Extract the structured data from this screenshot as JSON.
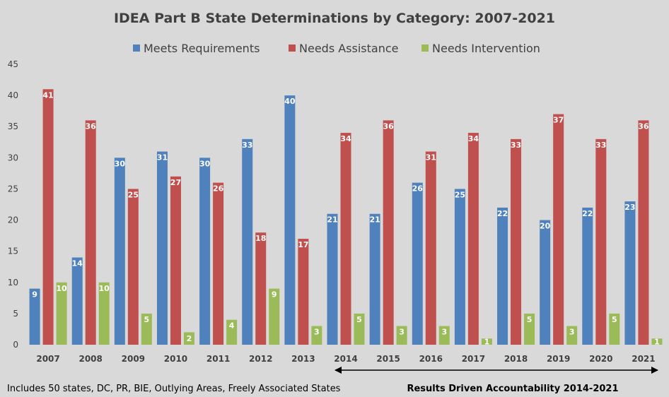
{
  "chart_data": {
    "type": "bar",
    "title": "IDEA Part B State Determinations by Category: 2007-2021",
    "categories": [
      "2007",
      "2008",
      "2009",
      "2010",
      "2011",
      "2012",
      "2013",
      "2014",
      "2015",
      "2016",
      "2017",
      "2018",
      "2019",
      "2020",
      "2021"
    ],
    "series": [
      {
        "name": "Meets Requirements",
        "color": "#4f81bd",
        "values": [
          9,
          14,
          30,
          31,
          30,
          33,
          40,
          21,
          21,
          26,
          25,
          22,
          20,
          22,
          23
        ]
      },
      {
        "name": "Needs Assistance",
        "color": "#c0504d",
        "values": [
          41,
          36,
          25,
          27,
          26,
          18,
          17,
          34,
          36,
          31,
          34,
          33,
          37,
          33,
          36
        ]
      },
      {
        "name": "Needs Intervention",
        "color": "#9bbb59",
        "values": [
          10,
          10,
          5,
          2,
          4,
          9,
          3,
          5,
          3,
          3,
          1,
          5,
          3,
          5,
          1
        ]
      }
    ],
    "ylim": [
      0,
      45
    ],
    "yticks": [
      0,
      5,
      10,
      15,
      20,
      25,
      30,
      35,
      40,
      45
    ],
    "grid": false,
    "legend": "top"
  },
  "footnote_left": "Includes 50 states, DC, PR, BIE, Outlying Areas, Freely Associated States",
  "footnote_right": "Results Driven Accountability 2014-2021"
}
